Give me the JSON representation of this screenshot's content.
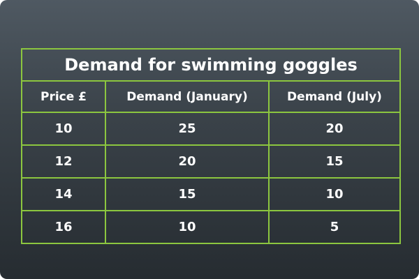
{
  "chart_data": {
    "type": "table",
    "title": "Demand for swimming goggles",
    "columns": [
      "Price £",
      "Demand (January)",
      "Demand (July)"
    ],
    "rows": [
      [
        "10",
        "25",
        "20"
      ],
      [
        "12",
        "20",
        "15"
      ],
      [
        "14",
        "15",
        "10"
      ],
      [
        "16",
        "10",
        "5"
      ]
    ]
  },
  "colors": {
    "grid_line": "#8cc63f",
    "text": "#ffffff",
    "background_top": "#4f5962",
    "background_bottom": "#262c31"
  }
}
